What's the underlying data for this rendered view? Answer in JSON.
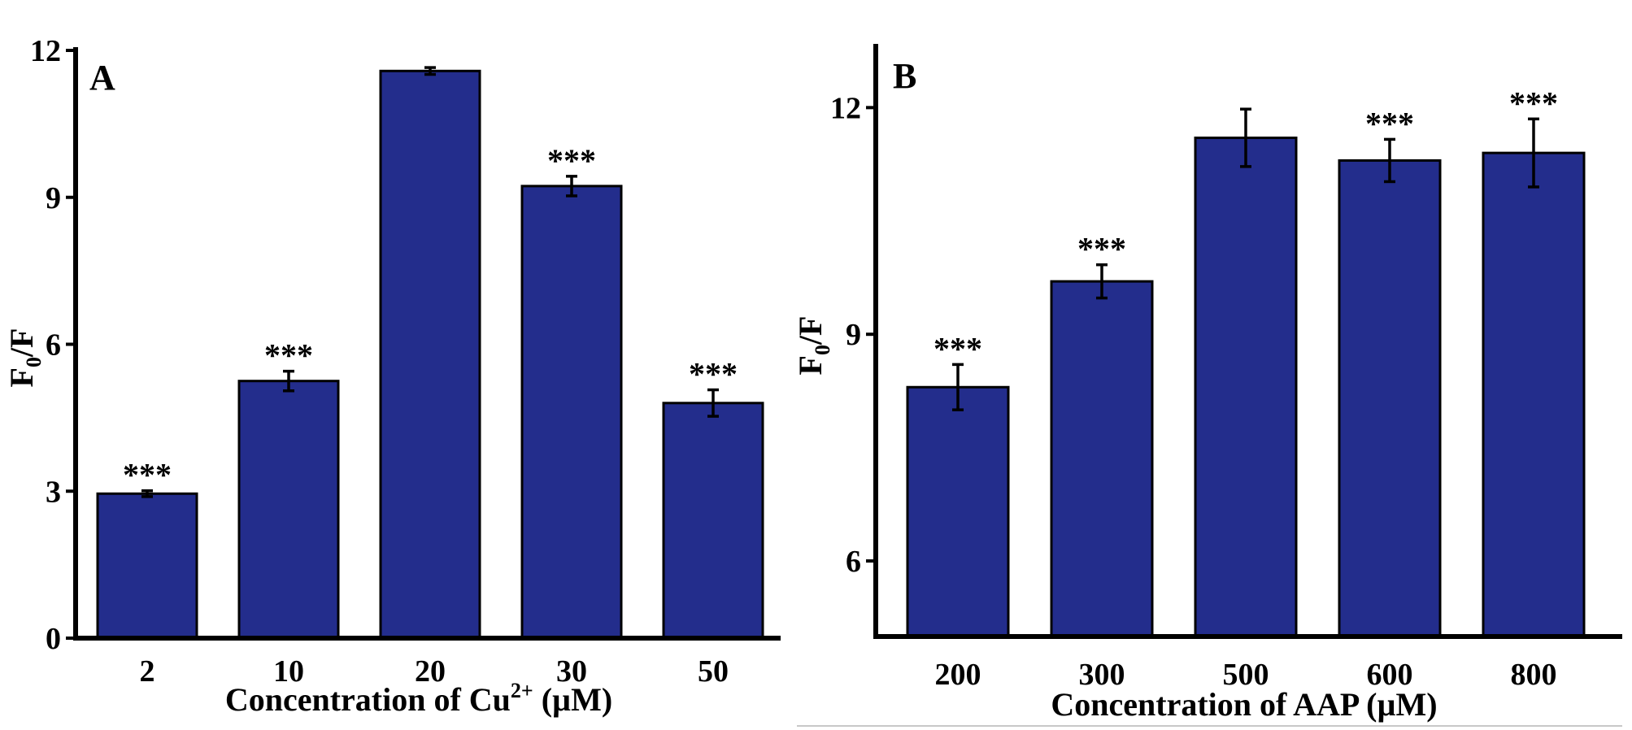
{
  "chart_data": [
    {
      "panel": "A",
      "type": "bar",
      "title": "",
      "xlabel_parts": [
        "Concentration of Cu",
        "2+",
        " (µM)"
      ],
      "ylabel_parts": [
        "F",
        "0",
        "/F"
      ],
      "categories": [
        "2",
        "10",
        "20",
        "30",
        "50"
      ],
      "values": [
        2.95,
        5.25,
        11.58,
        9.23,
        4.8
      ],
      "errors": [
        0.06,
        0.2,
        0.07,
        0.2,
        0.27
      ],
      "significance": [
        "***",
        "***",
        "",
        "***",
        "***"
      ],
      "ylim": [
        0,
        12
      ],
      "yticks": [
        0,
        3,
        6,
        9,
        12
      ],
      "bar_color": "#232d8c"
    },
    {
      "panel": "B",
      "type": "bar",
      "title": "",
      "xlabel_parts": [
        "Concentration of AAP (µM)"
      ],
      "ylabel_parts": [
        "F",
        "0",
        "/F"
      ],
      "categories": [
        "200",
        "300",
        "500",
        "600",
        "800"
      ],
      "values": [
        8.3,
        9.7,
        11.6,
        11.3,
        11.4
      ],
      "errors": [
        0.3,
        0.22,
        0.38,
        0.28,
        0.45
      ],
      "significance": [
        "***",
        "***",
        "",
        "***",
        "***"
      ],
      "ylim": [
        5,
        12.8
      ],
      "yticks": [
        6,
        9,
        12
      ],
      "bar_color": "#232d8c"
    }
  ]
}
